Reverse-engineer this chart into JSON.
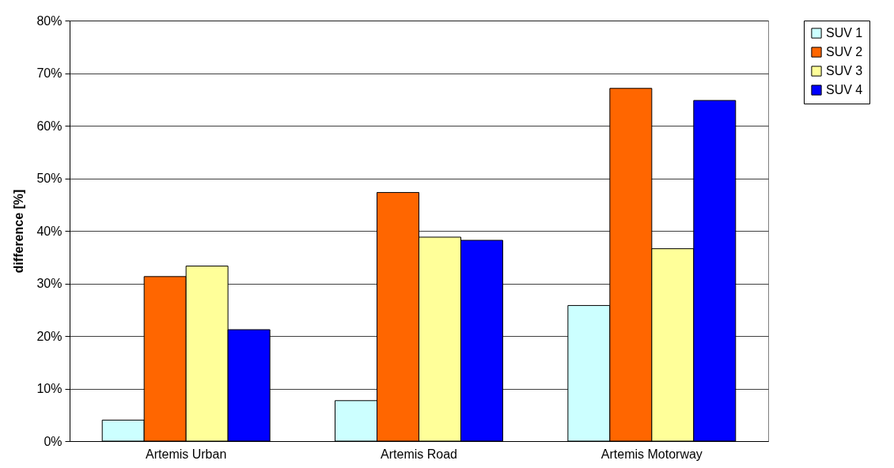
{
  "chart_data": {
    "type": "bar",
    "ylabel": "difference [%]",
    "categories": [
      "Artemis Urban",
      "Artemis Road",
      "Artemis Motorway"
    ],
    "series": [
      {
        "name": "SUV 1",
        "color": "#ccffff",
        "values": [
          4.0,
          7.7,
          25.8
        ]
      },
      {
        "name": "SUV 2",
        "color": "#ff6600",
        "values": [
          31.3,
          47.3,
          67.1
        ]
      },
      {
        "name": "SUV 3",
        "color": "#ffff99",
        "values": [
          33.3,
          38.8,
          36.6
        ]
      },
      {
        "name": "SUV 4",
        "color": "#0000ff",
        "values": [
          21.2,
          38.2,
          64.8
        ]
      }
    ],
    "ylim": [
      0,
      80
    ],
    "yticks": [
      {
        "value": 0,
        "label": "0%"
      },
      {
        "value": 10,
        "label": "10%"
      },
      {
        "value": 20,
        "label": "20%"
      },
      {
        "value": 30,
        "label": "30%"
      },
      {
        "value": 40,
        "label": "40%"
      },
      {
        "value": 50,
        "label": "50%"
      },
      {
        "value": 60,
        "label": "60%"
      },
      {
        "value": 70,
        "label": "70%"
      },
      {
        "value": 80,
        "label": "80%"
      }
    ],
    "grid": "y",
    "legend": "right"
  }
}
